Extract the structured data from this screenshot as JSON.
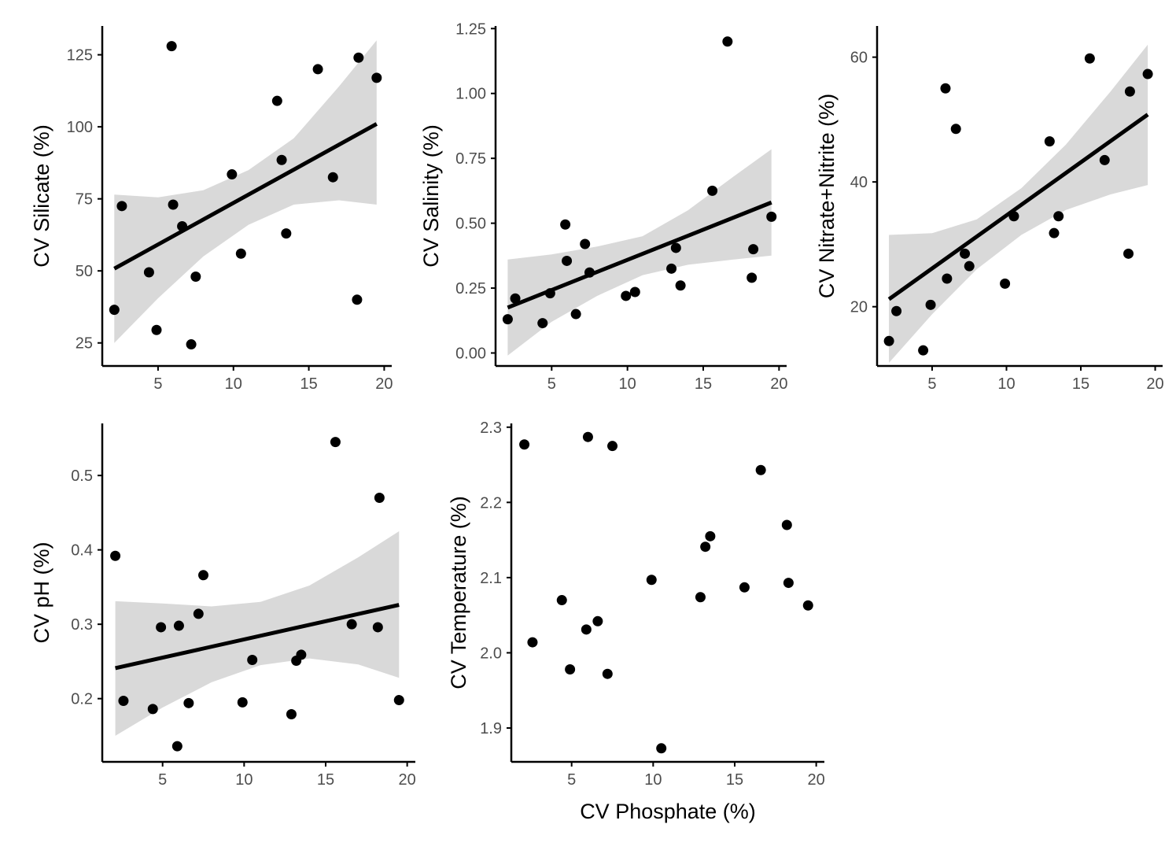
{
  "colors": {
    "point": "#000000",
    "fit_line": "#000000",
    "confidence_band": "#d9d9d9",
    "axis": "#000000",
    "tick_label": "#4d4d4d"
  },
  "x_axis_title": "CV Phosphate (%)",
  "chart_data": [
    {
      "type": "scatter",
      "ylabel": "CV Silicate (%)",
      "xlim": [
        1.3,
        20.5
      ],
      "ylim": [
        17,
        135
      ],
      "xticks": [
        5,
        10,
        15,
        20
      ],
      "yticks": [
        25,
        50,
        75,
        100,
        125
      ],
      "grid": false,
      "points": [
        {
          "x": 2.1,
          "y": 36.5
        },
        {
          "x": 2.6,
          "y": 72.5
        },
        {
          "x": 4.4,
          "y": 49.5
        },
        {
          "x": 4.9,
          "y": 29.5
        },
        {
          "x": 5.9,
          "y": 128
        },
        {
          "x": 6.0,
          "y": 73
        },
        {
          "x": 6.6,
          "y": 65.5
        },
        {
          "x": 7.2,
          "y": 24.5
        },
        {
          "x": 7.5,
          "y": 48
        },
        {
          "x": 9.9,
          "y": 83.5
        },
        {
          "x": 10.5,
          "y": 56
        },
        {
          "x": 12.9,
          "y": 109
        },
        {
          "x": 13.2,
          "y": 88.5
        },
        {
          "x": 13.5,
          "y": 63
        },
        {
          "x": 15.6,
          "y": 120
        },
        {
          "x": 16.6,
          "y": 82.5
        },
        {
          "x": 18.2,
          "y": 40
        },
        {
          "x": 18.3,
          "y": 124
        },
        {
          "x": 19.5,
          "y": 117
        }
      ],
      "fit": {
        "x": [
          2.1,
          19.5
        ],
        "y": [
          50.8,
          101
        ]
      },
      "band": {
        "x": [
          2.1,
          5.0,
          8.0,
          11.0,
          14.0,
          17.0,
          19.5
        ],
        "lower": [
          25,
          40.5,
          55,
          66,
          73,
          74.5,
          73
        ],
        "upper": [
          76.5,
          75.5,
          78,
          85,
          96,
          114,
          130
        ]
      }
    },
    {
      "type": "scatter",
      "ylabel": "CV Salinity (%)",
      "xlim": [
        1.3,
        20.5
      ],
      "ylim": [
        -0.05,
        1.26
      ],
      "xticks": [
        5,
        10,
        15,
        20
      ],
      "yticks": [
        "0.00",
        "0.25",
        "0.50",
        "0.75",
        "1.00",
        "1.25"
      ],
      "grid": false,
      "points": [
        {
          "x": 2.1,
          "y": 0.13
        },
        {
          "x": 2.6,
          "y": 0.21
        },
        {
          "x": 4.4,
          "y": 0.115
        },
        {
          "x": 4.9,
          "y": 0.23
        },
        {
          "x": 5.9,
          "y": 0.495
        },
        {
          "x": 6.0,
          "y": 0.355
        },
        {
          "x": 6.6,
          "y": 0.15
        },
        {
          "x": 7.2,
          "y": 0.42
        },
        {
          "x": 7.5,
          "y": 0.31
        },
        {
          "x": 9.9,
          "y": 0.22
        },
        {
          "x": 10.5,
          "y": 0.235
        },
        {
          "x": 12.9,
          "y": 0.325
        },
        {
          "x": 13.2,
          "y": 0.405
        },
        {
          "x": 13.5,
          "y": 0.26
        },
        {
          "x": 15.6,
          "y": 0.625
        },
        {
          "x": 16.6,
          "y": 1.2
        },
        {
          "x": 18.2,
          "y": 0.29
        },
        {
          "x": 18.3,
          "y": 0.4
        },
        {
          "x": 19.5,
          "y": 0.525
        }
      ],
      "fit": {
        "x": [
          2.1,
          19.5
        ],
        "y": [
          0.175,
          0.58
        ]
      },
      "band": {
        "x": [
          2.1,
          5.0,
          8.0,
          11.0,
          14.0,
          17.0,
          19.5
        ],
        "lower": [
          -0.01,
          0.12,
          0.22,
          0.3,
          0.34,
          0.36,
          0.375
        ],
        "upper": [
          0.36,
          0.38,
          0.41,
          0.45,
          0.55,
          0.68,
          0.785
        ]
      }
    },
    {
      "type": "scatter",
      "ylabel": "CV Nitrate+Nitrite (%)",
      "xlim": [
        1.3,
        20.5
      ],
      "ylim": [
        10.5,
        65
      ],
      "xticks": [
        5,
        10,
        15,
        20
      ],
      "yticks": [
        20,
        40,
        60
      ],
      "grid": false,
      "points": [
        {
          "x": 2.1,
          "y": 14.5
        },
        {
          "x": 2.6,
          "y": 19.3
        },
        {
          "x": 4.4,
          "y": 13
        },
        {
          "x": 4.9,
          "y": 20.3
        },
        {
          "x": 5.9,
          "y": 55
        },
        {
          "x": 6.0,
          "y": 24.5
        },
        {
          "x": 6.6,
          "y": 48.5
        },
        {
          "x": 7.2,
          "y": 28.5
        },
        {
          "x": 7.5,
          "y": 26.5
        },
        {
          "x": 9.9,
          "y": 23.7
        },
        {
          "x": 10.5,
          "y": 34.5
        },
        {
          "x": 12.9,
          "y": 46.5
        },
        {
          "x": 13.2,
          "y": 31.8
        },
        {
          "x": 13.5,
          "y": 34.5
        },
        {
          "x": 15.6,
          "y": 59.8
        },
        {
          "x": 16.6,
          "y": 43.5
        },
        {
          "x": 18.2,
          "y": 28.5
        },
        {
          "x": 18.3,
          "y": 54.5
        },
        {
          "x": 19.5,
          "y": 57.3
        }
      ],
      "fit": {
        "x": [
          2.1,
          19.5
        ],
        "y": [
          21.2,
          50.8
        ]
      },
      "band": {
        "x": [
          2.1,
          5.0,
          8.0,
          11.0,
          14.0,
          17.0,
          19.5
        ],
        "lower": [
          11,
          18.8,
          26,
          31.5,
          35.5,
          38,
          39.5
        ],
        "upper": [
          31.5,
          31.8,
          34,
          39,
          46,
          54.5,
          62
        ]
      }
    },
    {
      "type": "scatter",
      "ylabel": "CV pH (%)",
      "xlim": [
        1.3,
        20.5
      ],
      "ylim": [
        0.115,
        0.57
      ],
      "xticks": [
        5,
        10,
        15,
        20
      ],
      "yticks": [
        0.2,
        0.3,
        0.4,
        0.5
      ],
      "grid": false,
      "points": [
        {
          "x": 2.1,
          "y": 0.392
        },
        {
          "x": 2.6,
          "y": 0.197
        },
        {
          "x": 4.4,
          "y": 0.186
        },
        {
          "x": 4.9,
          "y": 0.296
        },
        {
          "x": 5.9,
          "y": 0.136
        },
        {
          "x": 6.0,
          "y": 0.298
        },
        {
          "x": 6.6,
          "y": 0.194
        },
        {
          "x": 7.2,
          "y": 0.314
        },
        {
          "x": 7.5,
          "y": 0.366
        },
        {
          "x": 9.9,
          "y": 0.195
        },
        {
          "x": 10.5,
          "y": 0.252
        },
        {
          "x": 12.9,
          "y": 0.179
        },
        {
          "x": 13.2,
          "y": 0.251
        },
        {
          "x": 13.5,
          "y": 0.259
        },
        {
          "x": 15.6,
          "y": 0.545
        },
        {
          "x": 16.6,
          "y": 0.3
        },
        {
          "x": 18.2,
          "y": 0.296
        },
        {
          "x": 18.3,
          "y": 0.47
        },
        {
          "x": 19.5,
          "y": 0.198
        }
      ],
      "fit": {
        "x": [
          2.1,
          19.5
        ],
        "y": [
          0.241,
          0.326
        ]
      },
      "band": {
        "x": [
          2.1,
          5.0,
          8.0,
          11.0,
          14.0,
          17.0,
          19.5
        ],
        "lower": [
          0.15,
          0.188,
          0.222,
          0.245,
          0.254,
          0.246,
          0.228
        ],
        "upper": [
          0.331,
          0.328,
          0.324,
          0.33,
          0.352,
          0.39,
          0.425
        ]
      }
    },
    {
      "type": "scatter",
      "ylabel": "CV Temperature (%)",
      "xlim": [
        1.3,
        20.5
      ],
      "ylim": [
        1.855,
        2.305
      ],
      "xticks": [
        5,
        10,
        15,
        20
      ],
      "yticks": [
        "1.9",
        "2.0",
        "2.1",
        "2.2",
        "2.3"
      ],
      "grid": false,
      "points": [
        {
          "x": 2.1,
          "y": 2.277
        },
        {
          "x": 2.6,
          "y": 2.014
        },
        {
          "x": 4.4,
          "y": 2.07
        },
        {
          "x": 4.9,
          "y": 1.978
        },
        {
          "x": 5.9,
          "y": 2.031
        },
        {
          "x": 6.0,
          "y": 2.287
        },
        {
          "x": 6.6,
          "y": 2.042
        },
        {
          "x": 7.2,
          "y": 1.972
        },
        {
          "x": 7.5,
          "y": 2.275
        },
        {
          "x": 9.9,
          "y": 2.097
        },
        {
          "x": 10.5,
          "y": 1.873
        },
        {
          "x": 12.9,
          "y": 2.074
        },
        {
          "x": 13.2,
          "y": 2.141
        },
        {
          "x": 13.5,
          "y": 2.155
        },
        {
          "x": 15.6,
          "y": 2.087
        },
        {
          "x": 16.6,
          "y": 2.243
        },
        {
          "x": 18.2,
          "y": 2.17
        },
        {
          "x": 18.3,
          "y": 2.093
        },
        {
          "x": 19.5,
          "y": 2.063
        }
      ]
    }
  ]
}
